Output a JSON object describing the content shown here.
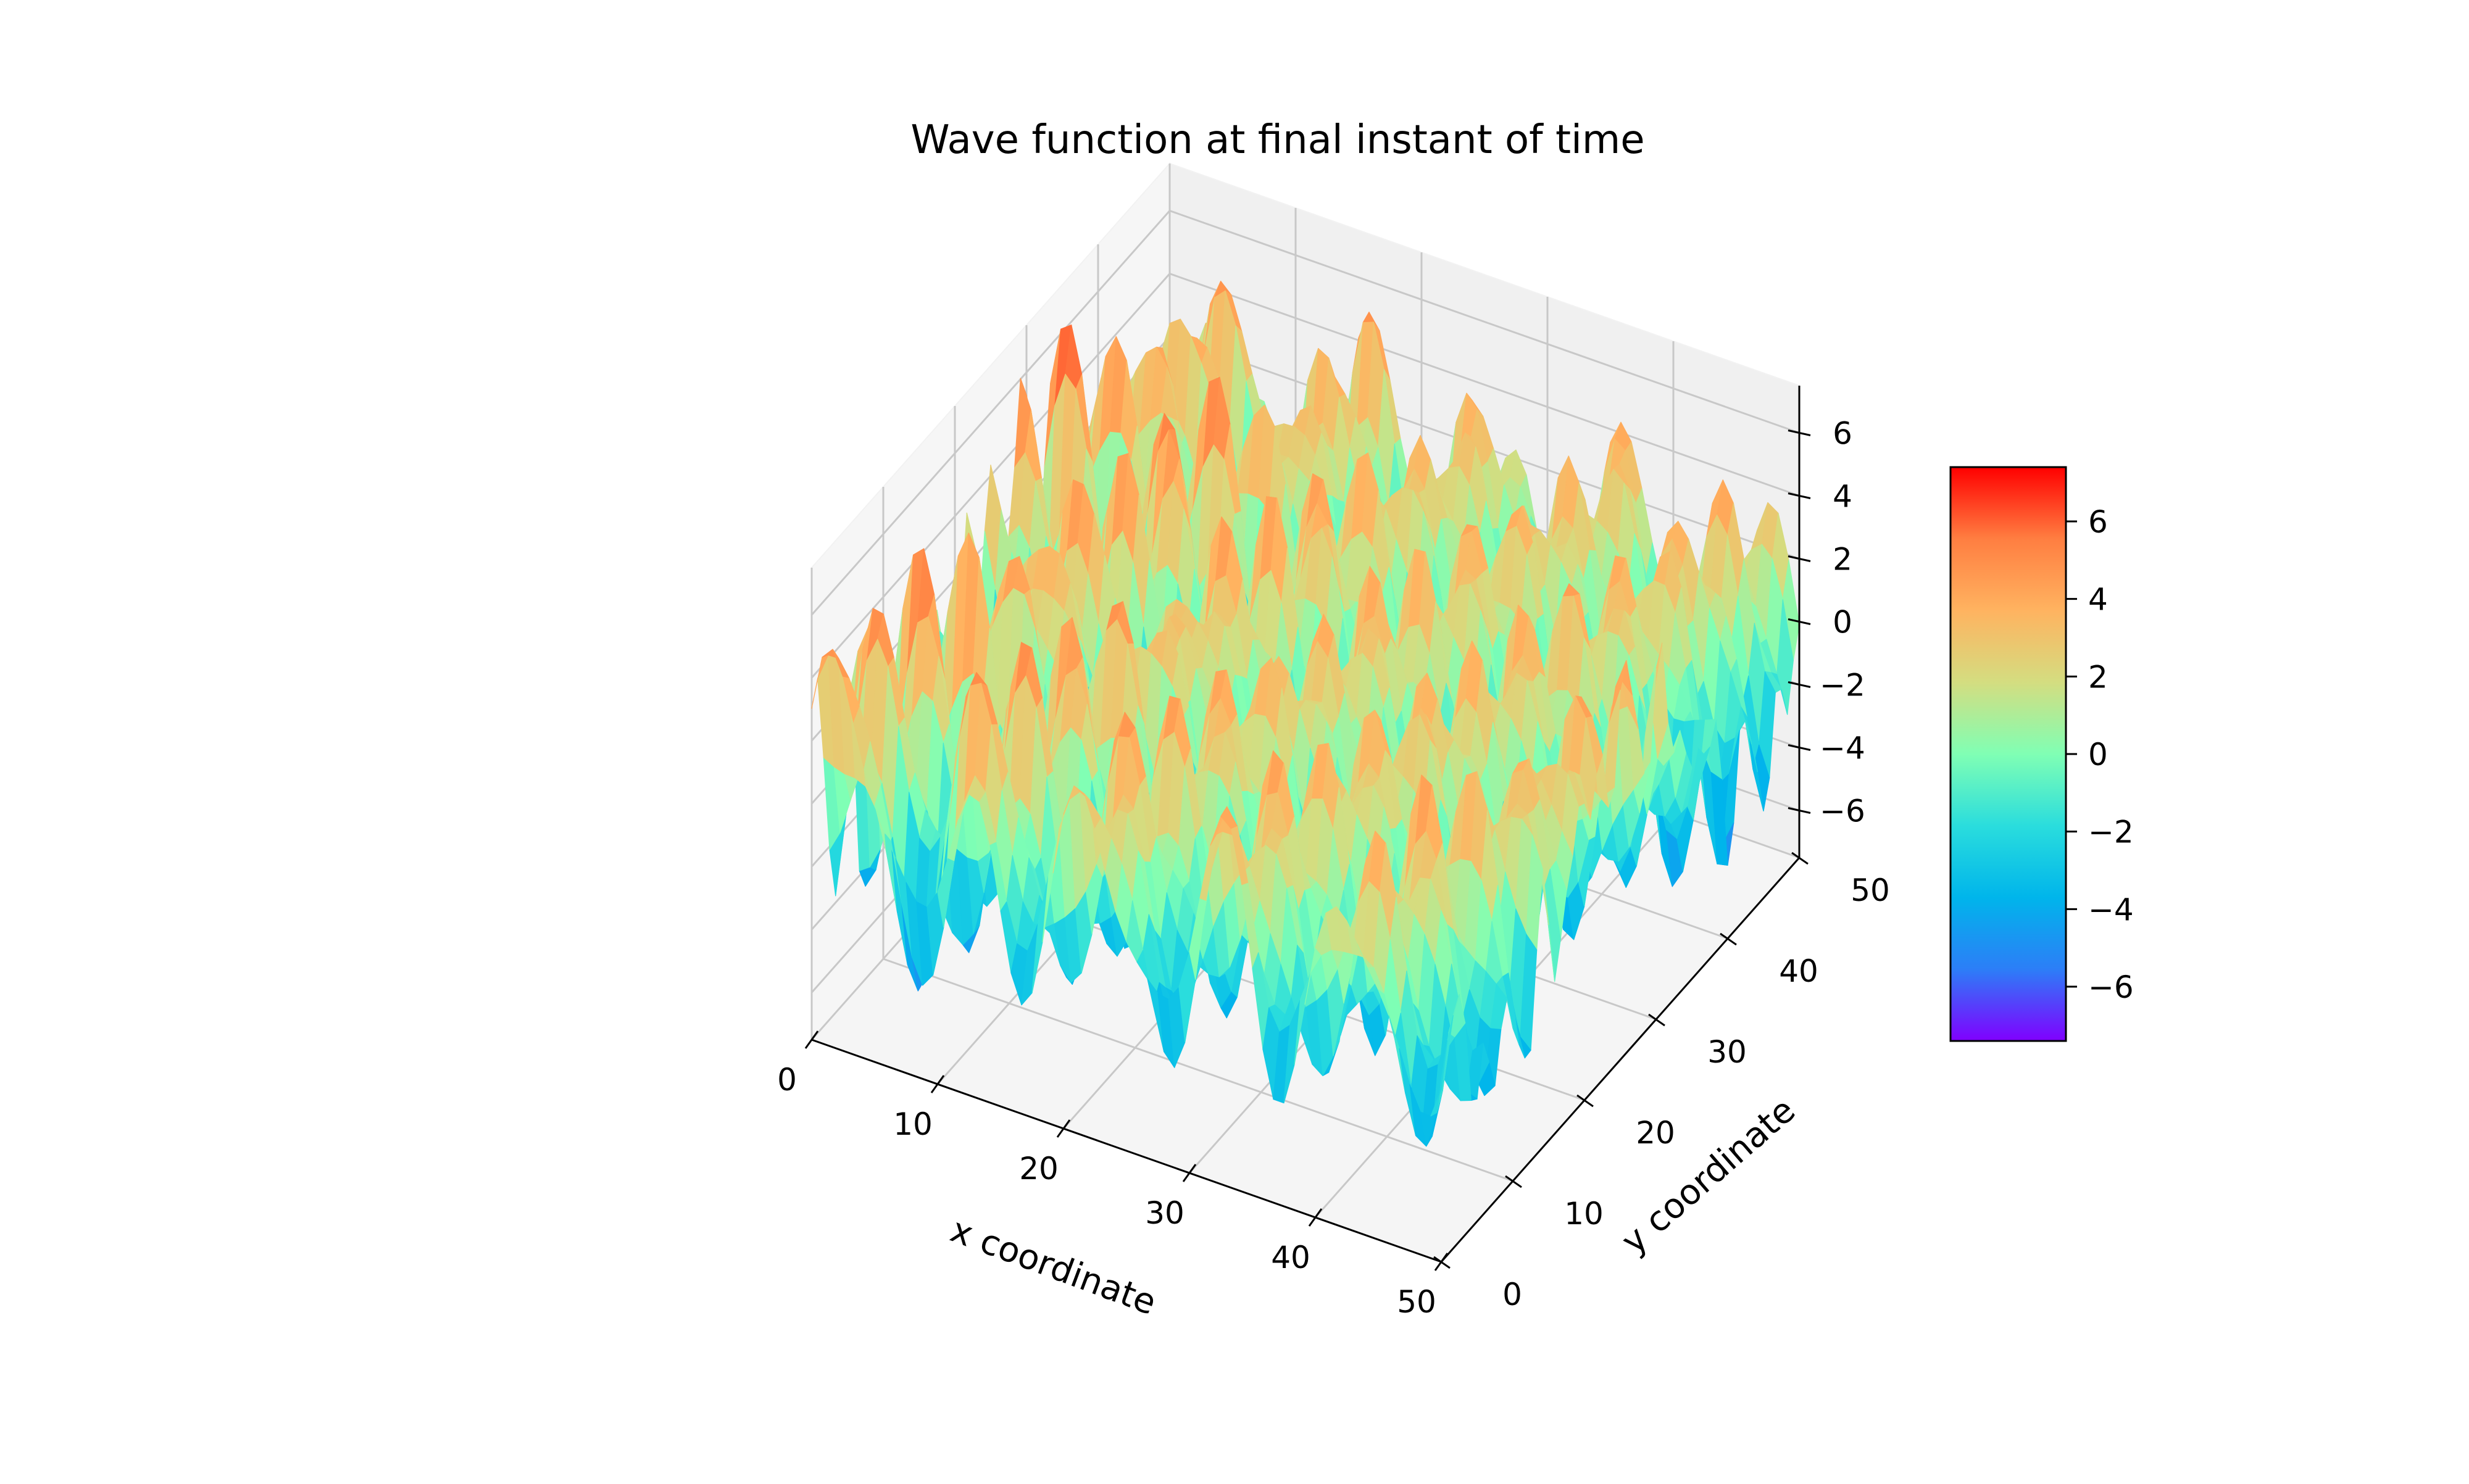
{
  "chart_data": {
    "type": "surface",
    "title": "Wave function at final instant of time",
    "xlabel": "x coordinate",
    "ylabel": "y coordinate",
    "zlabel": "",
    "xlim": [
      0,
      50
    ],
    "ylim": [
      0,
      50
    ],
    "zlim": [
      -7.5,
      7.5
    ],
    "x_ticks": [
      0,
      10,
      20,
      30,
      40,
      50
    ],
    "y_ticks": [
      0,
      10,
      20,
      30,
      40,
      50
    ],
    "z_ticks": [
      6,
      4,
      2,
      0,
      -2,
      -4,
      -6
    ],
    "z_tick_labels": [
      "6",
      "4",
      "2",
      "0",
      "−2",
      "−4",
      "−6"
    ],
    "grid": true,
    "colormap": "rainbow",
    "colormap_stops": [
      "#8000ff",
      "#2c7ef7",
      "#00b5eb",
      "#2adddd",
      "#80ffb4",
      "#d4dd80",
      "#ffb360",
      "#ff7e41",
      "#ff0000"
    ],
    "colorbar": {
      "position": "right",
      "range": [
        -7.4,
        7.4
      ],
      "ticks": [
        6,
        4,
        2,
        0,
        -2,
        -4,
        -6
      ],
      "tick_labels": [
        "6",
        "4",
        "2",
        "0",
        "−2",
        "−4",
        "−6"
      ]
    },
    "surface_description": "Travelling-wave surface z(x,y) with ridges running along y, amplitude about 7"
  }
}
